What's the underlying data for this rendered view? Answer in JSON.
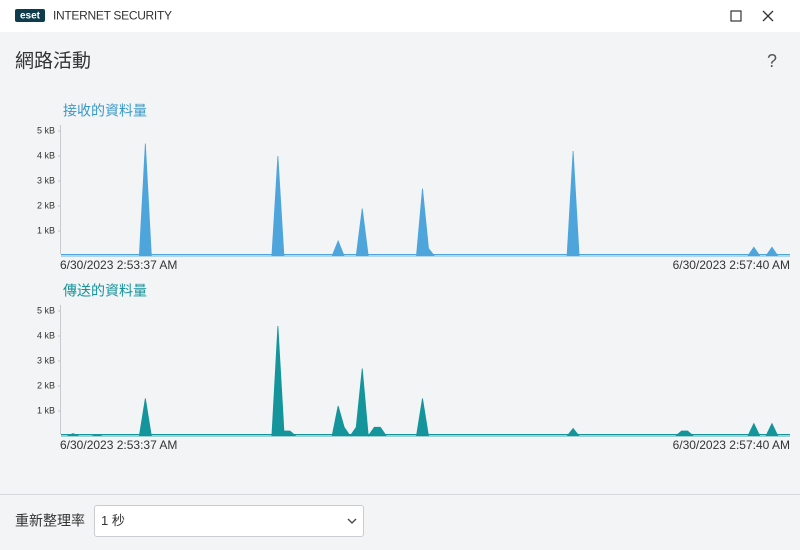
{
  "window": {
    "logo": "eset",
    "product": "INTERNET SECURITY"
  },
  "page": {
    "title": "網路活動",
    "help": "?"
  },
  "charts": [
    {
      "type": "area",
      "title": "接收的資料量",
      "color": "#4ea5db",
      "title_color": "#3a98c8",
      "ylim": [
        0,
        5
      ],
      "yticks": [
        {
          "value": 1,
          "label": "1 kB"
        },
        {
          "value": 2,
          "label": "2 kB"
        },
        {
          "value": 3,
          "label": "3 kB"
        },
        {
          "value": 4,
          "label": "4 kB"
        },
        {
          "value": 5,
          "label": "5 kB"
        }
      ],
      "x_labels": [
        "6/30/2023 2:53:37 AM",
        "6/30/2023 2:57:40 AM"
      ],
      "values": [
        0,
        0,
        0,
        0,
        0,
        0,
        0,
        0,
        0,
        0,
        0,
        0,
        0,
        0,
        4.5,
        0,
        0,
        0,
        0,
        0,
        0,
        0,
        0,
        0,
        0,
        0,
        0,
        0,
        0,
        0,
        0,
        0,
        0,
        0,
        0,
        0,
        4,
        0,
        0,
        0,
        0,
        0,
        0,
        0,
        0,
        0,
        0.6,
        0,
        0,
        0,
        1.9,
        0,
        0,
        0,
        0,
        0,
        0,
        0,
        0,
        0,
        2.7,
        0.3,
        0,
        0,
        0,
        0,
        0,
        0,
        0,
        0,
        0,
        0,
        0,
        0,
        0,
        0,
        0,
        0,
        0,
        0,
        0,
        0,
        0,
        0,
        0,
        4.2,
        0,
        0,
        0,
        0,
        0,
        0,
        0,
        0,
        0,
        0,
        0,
        0,
        0,
        0,
        0,
        0,
        0,
        0,
        0,
        0,
        0,
        0,
        0,
        0,
        0,
        0,
        0,
        0,
        0,
        0.35,
        0,
        0,
        0.35,
        0,
        0,
        0
      ]
    },
    {
      "type": "area",
      "title": "傳送的資料量",
      "color": "#13959b",
      "title_color": "#13939a",
      "ylim": [
        0,
        5
      ],
      "yticks": [
        {
          "value": 1,
          "label": "1 kB"
        },
        {
          "value": 2,
          "label": "2 kB"
        },
        {
          "value": 3,
          "label": "3 kB"
        },
        {
          "value": 4,
          "label": "4 kB"
        },
        {
          "value": 5,
          "label": "5 kB"
        }
      ],
      "x_labels": [
        "6/30/2023 2:53:37 AM",
        "6/30/2023 2:57:40 AM"
      ],
      "values": [
        0,
        0,
        0.1,
        0,
        0,
        0,
        0.05,
        0,
        0,
        0,
        0,
        0,
        0,
        0,
        1.5,
        0,
        0,
        0,
        0,
        0,
        0,
        0,
        0,
        0,
        0,
        0,
        0,
        0,
        0,
        0,
        0,
        0,
        0,
        0,
        0,
        0,
        4.4,
        0.2,
        0.2,
        0,
        0,
        0,
        0,
        0,
        0,
        0,
        1.2,
        0.35,
        0,
        0.35,
        2.7,
        0,
        0.35,
        0.35,
        0,
        0,
        0,
        0,
        0,
        0,
        1.5,
        0,
        0,
        0,
        0,
        0,
        0,
        0,
        0,
        0,
        0,
        0,
        0,
        0,
        0,
        0,
        0,
        0,
        0,
        0,
        0,
        0,
        0,
        0,
        0,
        0.3,
        0,
        0,
        0,
        0,
        0,
        0,
        0,
        0,
        0,
        0,
        0,
        0,
        0,
        0,
        0,
        0,
        0,
        0.2,
        0.2,
        0,
        0,
        0,
        0,
        0,
        0,
        0,
        0,
        0,
        0,
        0.5,
        0,
        0,
        0.5,
        0,
        0,
        0
      ]
    }
  ],
  "footer": {
    "label": "重新整理率",
    "select": "1 秒"
  }
}
